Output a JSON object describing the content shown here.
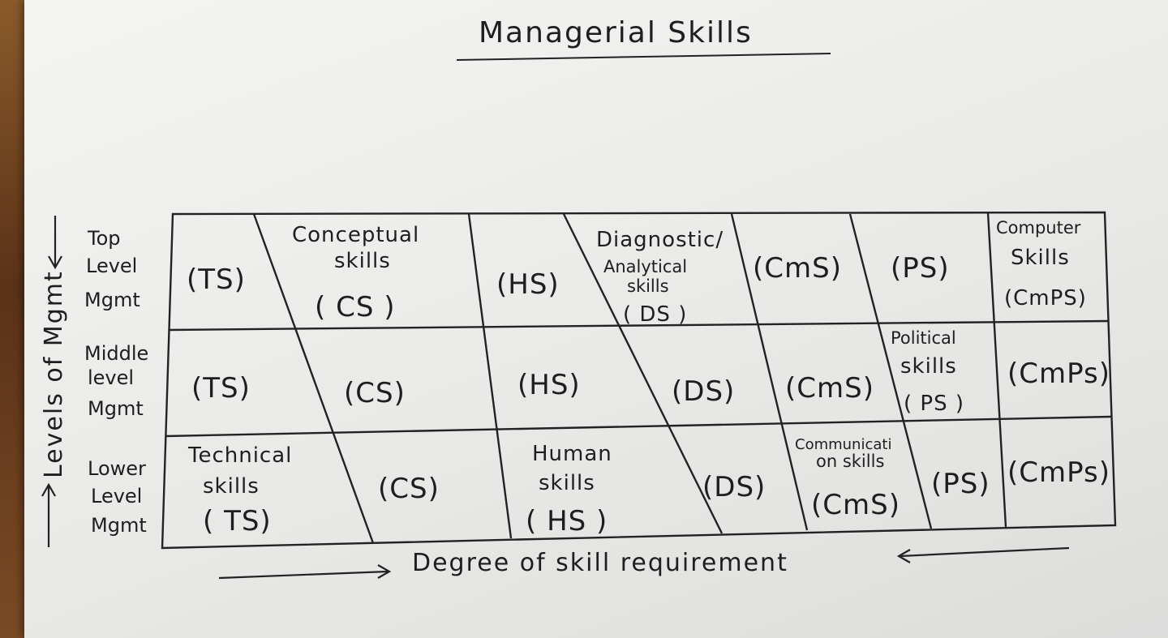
{
  "title": "Managerial Skills",
  "y_axis_label": "Levels of Mgmt",
  "x_axis_label": "Degree of skill requirement",
  "rows": [
    {
      "l1": "Top",
      "l2": "Level",
      "l3": "Mgmt"
    },
    {
      "l1": "Middle",
      "l2": "level",
      "l3": "Mgmt"
    },
    {
      "l1": "Lower",
      "l2": "Level",
      "l3": "Mgmt"
    }
  ],
  "top_row": {
    "ts": "(TS)",
    "cs_1": "Conceptual",
    "cs_2": "skills",
    "cs_3": "( CS )",
    "hs": "(HS)",
    "ds_1": "Diagnostic/",
    "ds_2": "Analytical",
    "ds_3": "skills",
    "ds_4": "( DS )",
    "cms": "(CmS)",
    "ps": "(PS)",
    "cmps_1": "Computer",
    "cmps_2": "Skills",
    "cmps_3": "(CmPS)"
  },
  "middle_row": {
    "ts": "(TS)",
    "cs": "(CS)",
    "hs": "(HS)",
    "ds": "(DS)",
    "cms": "(CmS)",
    "ps_1": "Political",
    "ps_2": "skills",
    "ps_3": "( PS )",
    "cmps": "(CmPs)"
  },
  "lower_row": {
    "ts_1": "Technical",
    "ts_2": "skills",
    "ts_3": "( TS)",
    "cs": "(CS)",
    "hs_1": "Human",
    "hs_2": "skills",
    "hs_3": "( HS )",
    "ds": "(DS)",
    "cms_1": "Communicati",
    "cms_2": "on skills",
    "cms_3": "(CmS)",
    "ps": "(PS)",
    "cmps": "(CmPs)"
  },
  "colors": {
    "paper": "#ececea",
    "ink": "#1e1e1e",
    "background": "#6b3f1f"
  }
}
